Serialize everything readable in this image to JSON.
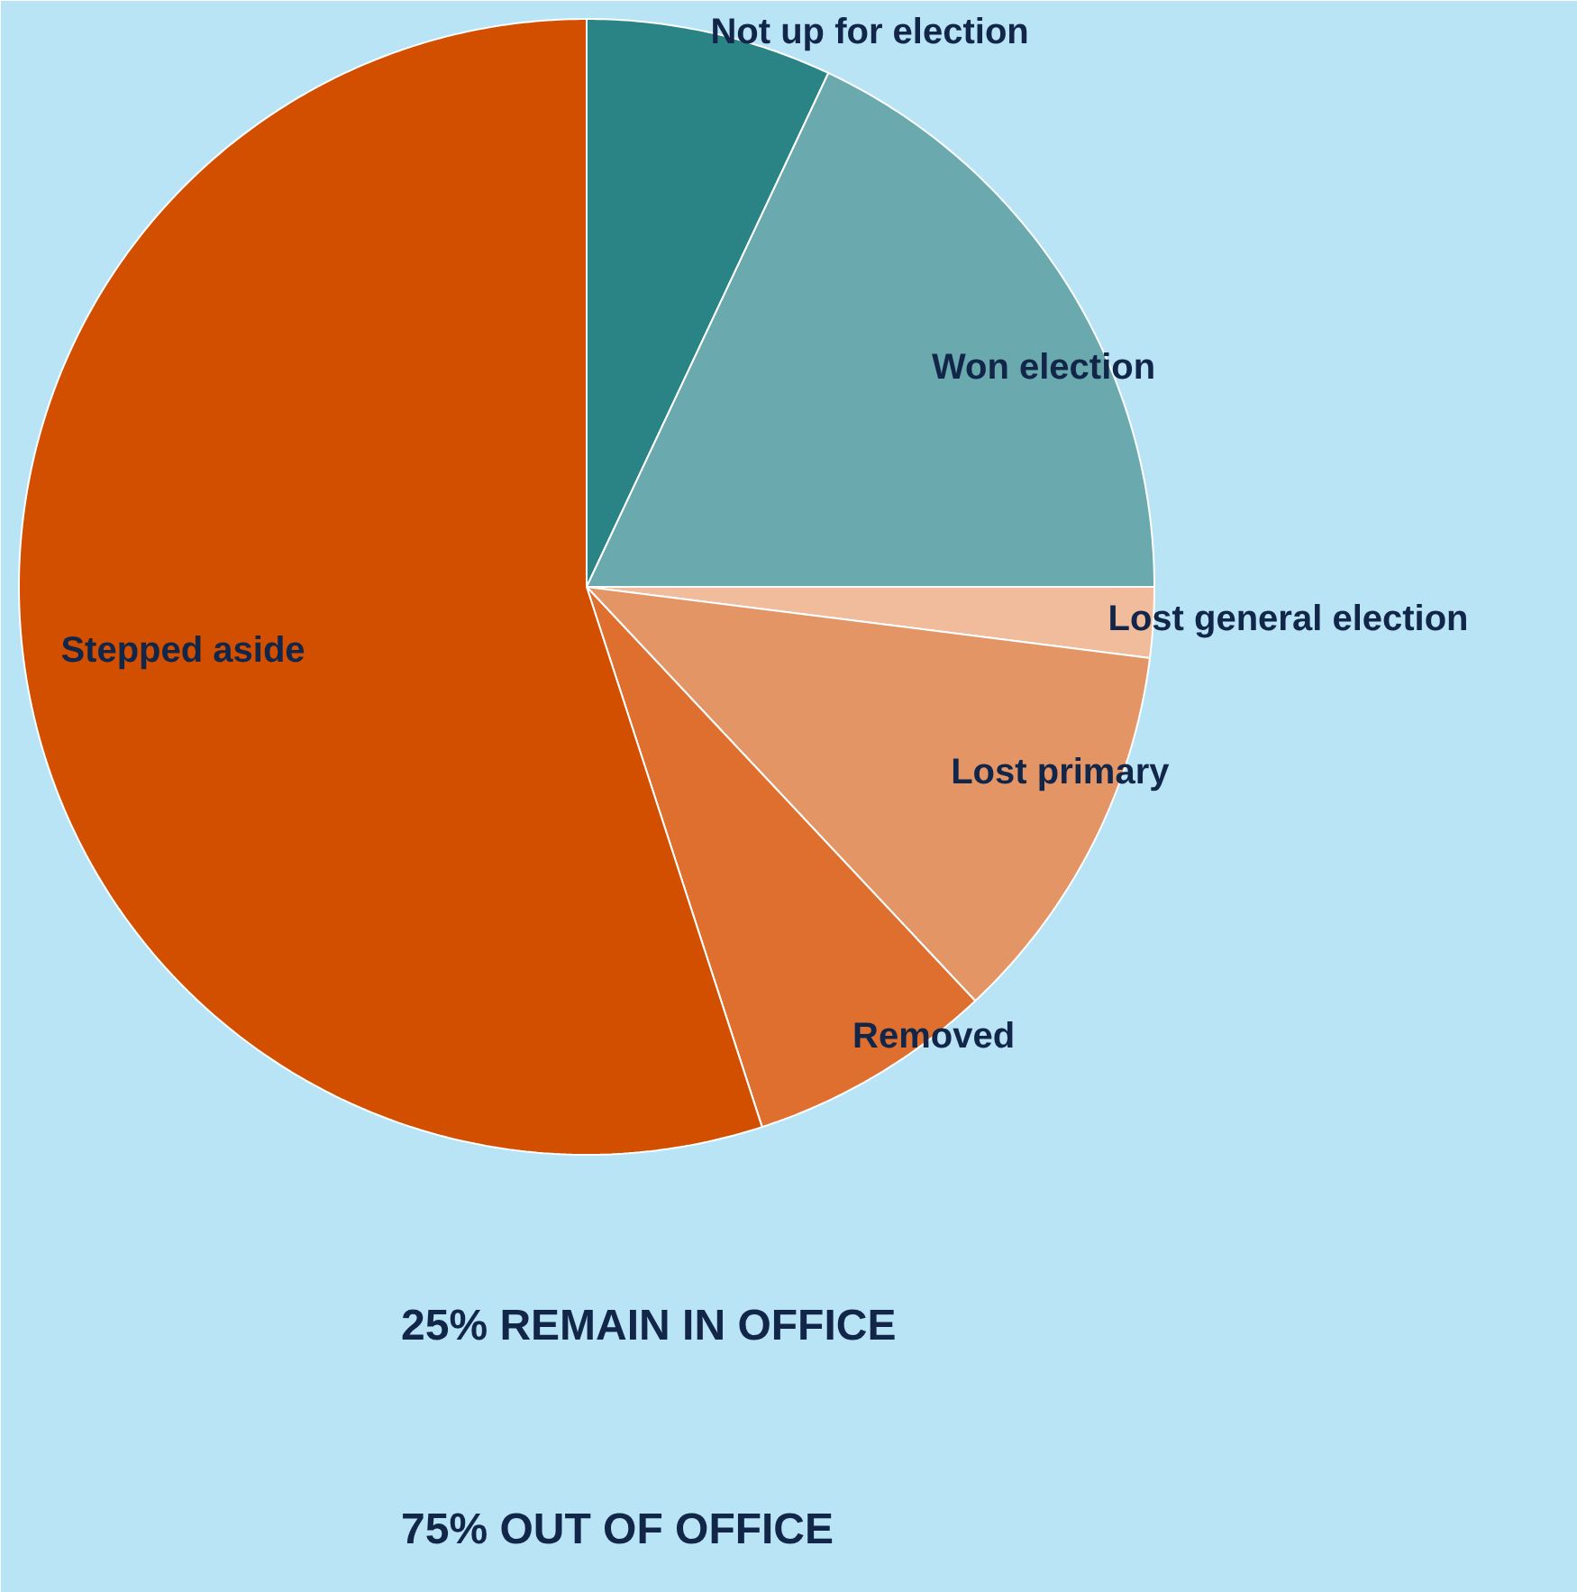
{
  "chart_data": {
    "type": "pie",
    "categories": [
      "Not up for election",
      "Won election",
      "Lost general election",
      "Lost primary",
      "Removed",
      "Stepped aside"
    ],
    "values": [
      7,
      18,
      2,
      11,
      7,
      55
    ],
    "colors": [
      "#2a8384",
      "#6aa9ad",
      "#f0bc9c",
      "#e39566",
      "#df6f2f",
      "#d24f00"
    ],
    "annotations": [
      "25% REMAIN IN OFFICE",
      "75% OUT OF OFFICE"
    ]
  }
}
